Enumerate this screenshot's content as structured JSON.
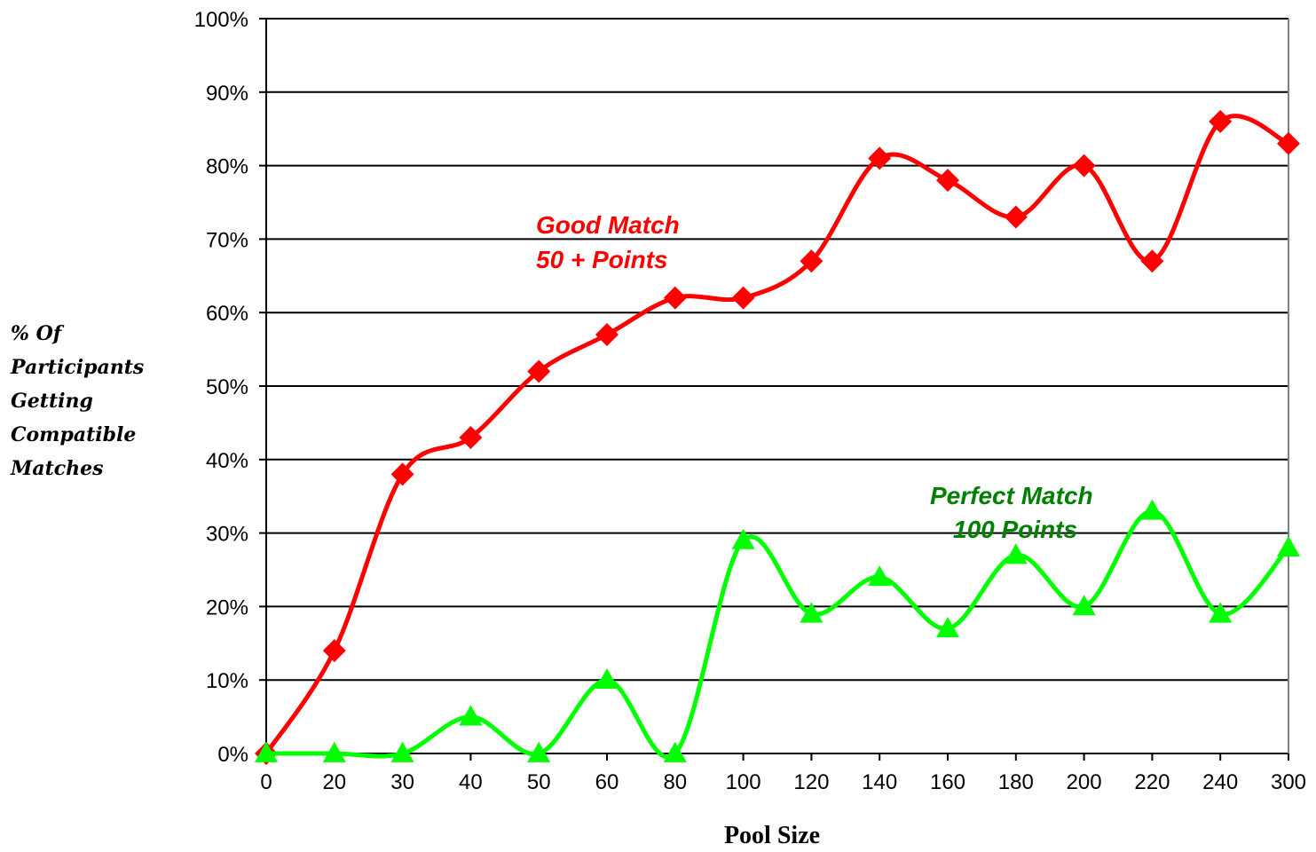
{
  "chart_data": {
    "type": "line",
    "categories": [
      "0",
      "20",
      "30",
      "40",
      "50",
      "60",
      "80",
      "100",
      "120",
      "140",
      "160",
      "180",
      "200",
      "220",
      "240",
      "300"
    ],
    "ylim": [
      0,
      100
    ],
    "y_ticks": [
      "0%",
      "10%",
      "20%",
      "30%",
      "40%",
      "50%",
      "60%",
      "70%",
      "80%",
      "90%",
      "100%"
    ],
    "xlabel": "Pool Size",
    "ylabel_lines": [
      "% Of",
      "Participants",
      "Getting",
      "Compatible",
      "Matches"
    ],
    "grid": true,
    "series": [
      {
        "name": "Good Match 50 + Points",
        "label_lines": [
          "Good Match",
          "50 + Points"
        ],
        "color": "#ff0000",
        "marker_color": "#ff0000",
        "marker": "diamond",
        "values": [
          0,
          14,
          38,
          43,
          52,
          57,
          62,
          62,
          67,
          81,
          78,
          73,
          80,
          67,
          86,
          83
        ]
      },
      {
        "name": "Perfect Match 100 Points",
        "label_lines": [
          "Perfect Match",
          "100 Points"
        ],
        "color": "#00ff00",
        "label_color": "#008000",
        "marker_color": "#00ff00",
        "marker": "triangle",
        "values": [
          0,
          0,
          0,
          5,
          0,
          10,
          0,
          29,
          19,
          24,
          17,
          27,
          20,
          33,
          19,
          28
        ]
      }
    ]
  }
}
